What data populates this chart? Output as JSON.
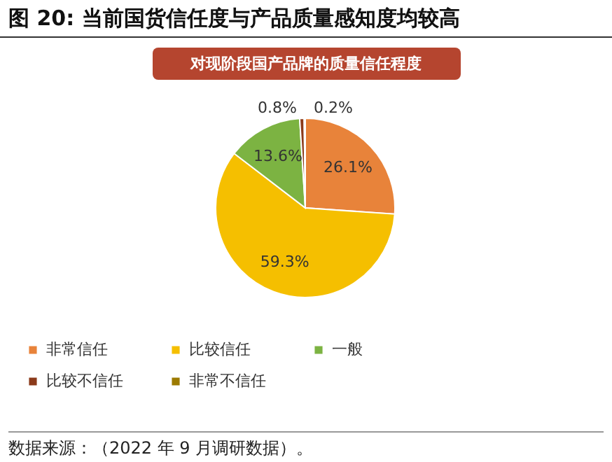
{
  "chart_data": {
    "type": "pie",
    "title": "图 20: 当前国货信任度与产品质量感知度均较高",
    "subtitle": "对现阶段国产品牌的质量信任程度",
    "categories": [
      "非常信任",
      "比较信任",
      "一般",
      "比较不信任",
      "非常不信任"
    ],
    "values": [
      26.1,
      59.3,
      13.6,
      0.8,
      0.2
    ],
    "colors": [
      "#e8833a",
      "#f5bf00",
      "#7cb342",
      "#8b3a1a",
      "#9c7a00"
    ],
    "value_labels": [
      "26.1%",
      "59.3%",
      "13.6%",
      "0.8%",
      "0.2%"
    ],
    "legend": "bottom",
    "annotations": [
      "数据来源：（2022 年 9 月调研数据）。"
    ]
  }
}
